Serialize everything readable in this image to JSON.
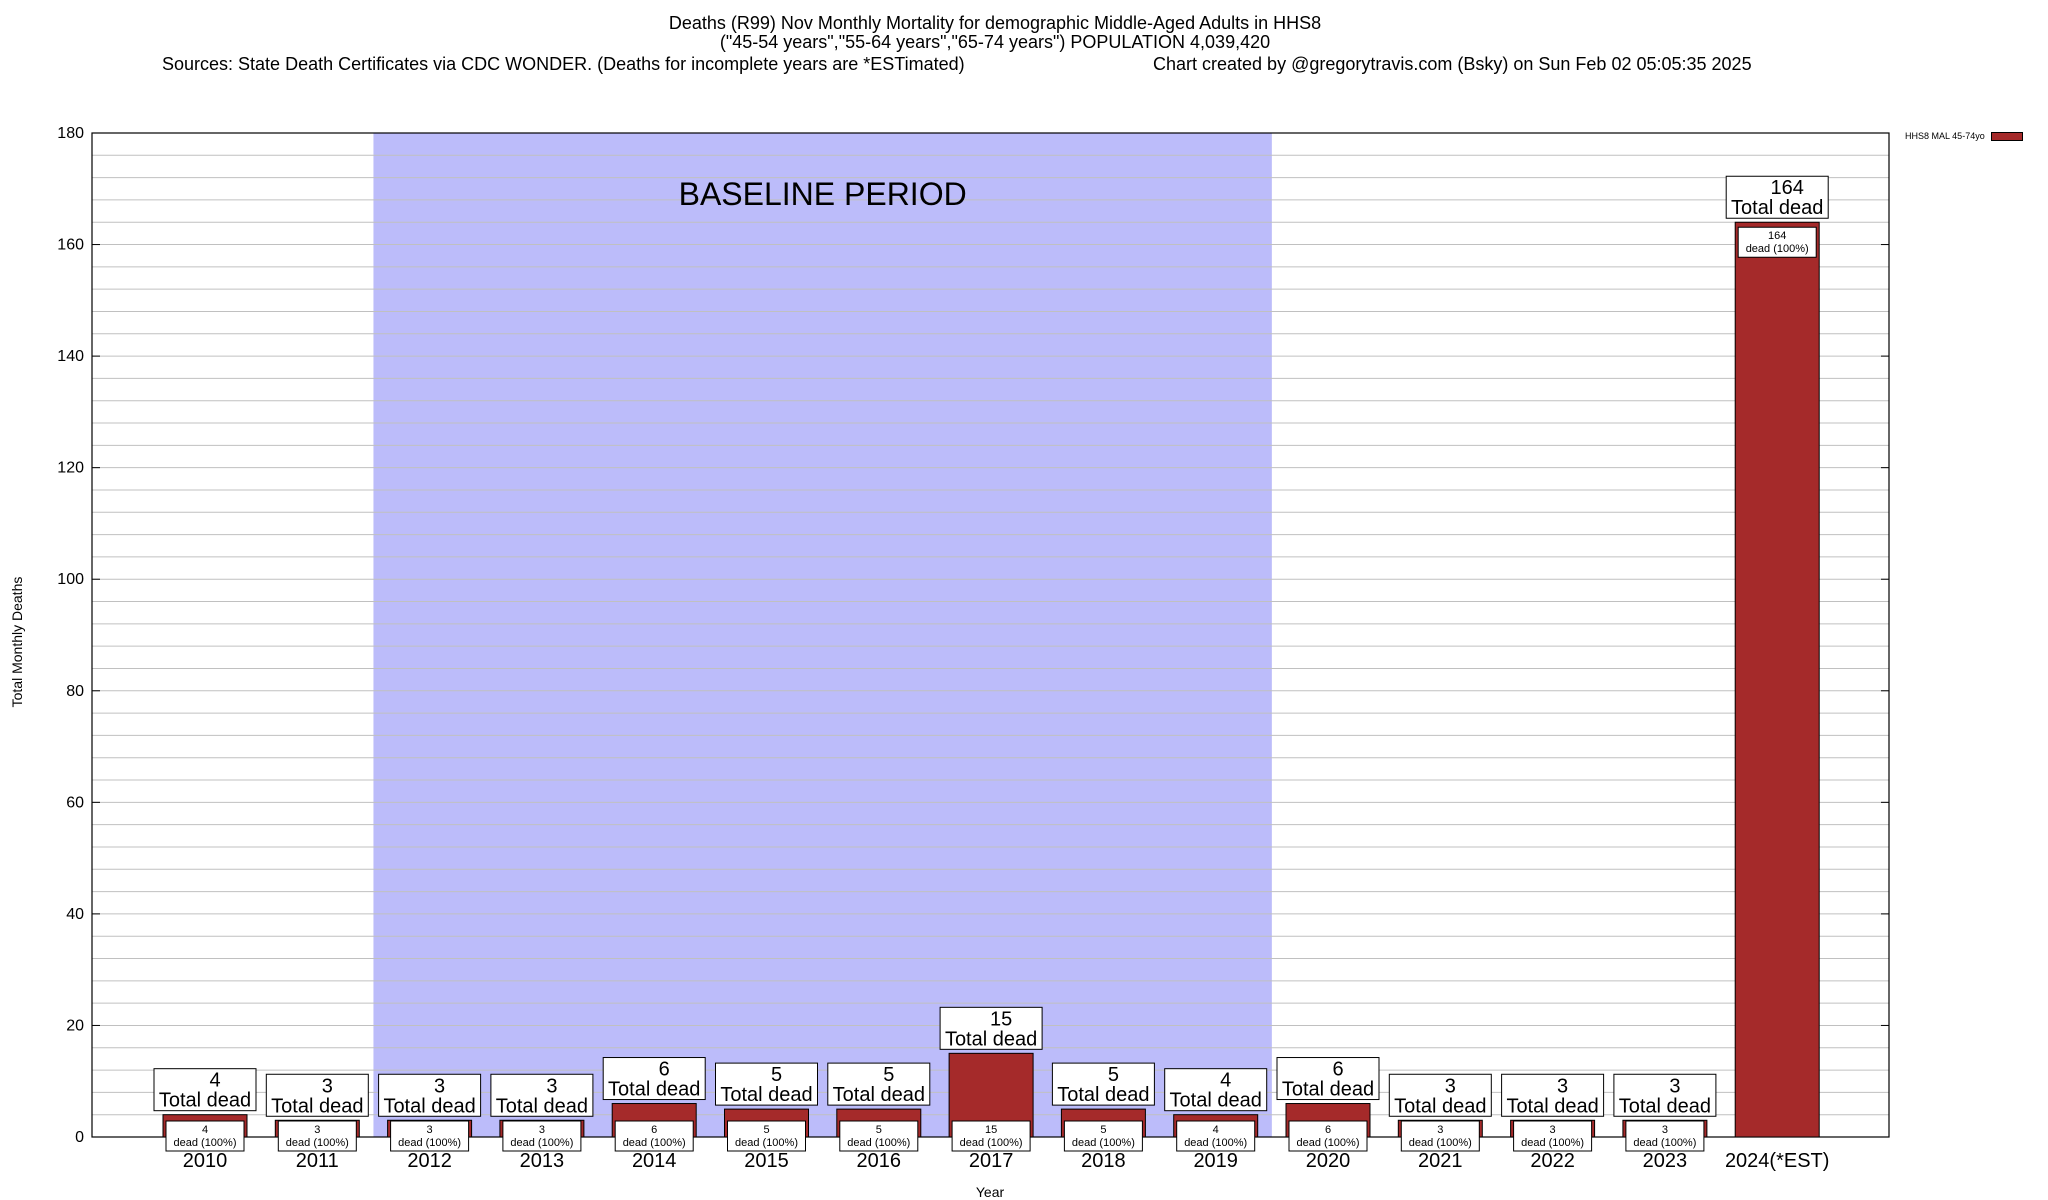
{
  "header": {
    "title_line1": "Deaths (R99) Nov Monthly Mortality for demographic Middle-Aged Adults in HHS8",
    "title_line2": "(\"45-54 years\",\"55-64 years\",\"65-74 years\") POPULATION 4,039,420",
    "source": "Sources: State Death Certificates via CDC WONDER. (Deaths for incomplete years are *ESTimated)",
    "credit": "Chart created by @gregorytravis.com (Bsky) on Sun Feb 02 05:05:35 2025"
  },
  "chart_data": {
    "type": "bar",
    "categories": [
      "2010",
      "2011",
      "2012",
      "2013",
      "2014",
      "2015",
      "2016",
      "2017",
      "2018",
      "2019",
      "2020",
      "2021",
      "2022",
      "2023",
      "2024(*EST)"
    ],
    "series": [
      {
        "name": "HHS8 MAL 45-74yo",
        "values": [
          4,
          3,
          3,
          3,
          6,
          5,
          5,
          15,
          5,
          4,
          6,
          3,
          3,
          3,
          164
        ]
      }
    ],
    "xlabel": "Year",
    "ylabel": "Total Monthly Deaths",
    "ylim": [
      0,
      180
    ],
    "yticks": [
      0,
      20,
      40,
      60,
      80,
      100,
      120,
      140,
      160,
      180
    ],
    "grid": true,
    "legend": "top-right",
    "total_label_suffix": "Total dead",
    "inner_label_suffix": "dead (100%)",
    "baseline": {
      "label": "BASELINE PERIOD",
      "from": "2012",
      "to": "2019"
    },
    "colors": {
      "bar": "#a52a2a",
      "baseline": "#bcbcfa",
      "grid": "#c0c0c0"
    }
  }
}
